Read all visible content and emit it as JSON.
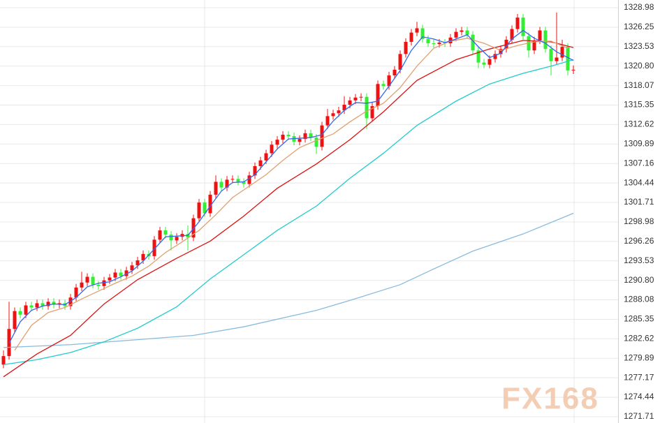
{
  "chart_data": {
    "type": "candlestick",
    "open": [
      1279.0,
      1280.2,
      1284.0,
      1286.5,
      1286.0,
      1287.3,
      1287.0,
      1287.6,
      1287.2,
      1287.8,
      1287.4,
      1287.6,
      1287.2,
      1288.4,
      1289.8,
      1290.5,
      1291.3,
      1290.2,
      1290.0,
      1290.8,
      1291.2,
      1291.9,
      1291.4,
      1292.2,
      1292.9,
      1293.6,
      1294.5,
      1294.2,
      1296.5,
      1297.8,
      1297.2,
      1296.4,
      1296.9,
      1297.3,
      1296.8,
      1299.5,
      1301.7,
      1300.2,
      1302.8,
      1304.6,
      1303.8,
      1304.9,
      1305.0,
      1304.6,
      1304.3,
      1305.5,
      1306.8,
      1307.6,
      1308.6,
      1309.8,
      1310.5,
      1311.2,
      1311.0,
      1310.2,
      1310.6,
      1311.4,
      1310.8,
      1309.5,
      1312.5,
      1313.8,
      1314.2,
      1314.6,
      1315.4,
      1316.0,
      1316.4,
      1316.5,
      1313.5,
      1315.2,
      1318.3,
      1318.0,
      1319.5,
      1320.3,
      1322.5,
      1324.2,
      1325.5,
      1326.1,
      1324.6,
      1324.0,
      1323.9,
      1324.1,
      1324.0,
      1324.8,
      1325.6,
      1325.8,
      1325.2,
      1323.0,
      1321.3,
      1321.0,
      1321.8,
      1322.5,
      1323.2,
      1324.5,
      1326.0,
      1327.6,
      1325.0,
      1323.0,
      1324.4,
      1325.8,
      1323.2,
      1321.5,
      1322.0,
      1323.5,
      1320.2
    ],
    "high": [
      1281.0,
      1287.8,
      1287.0,
      1287.0,
      1287.8,
      1287.8,
      1288.1,
      1288.1,
      1288.3,
      1288.3,
      1288.1,
      1288.1,
      1288.9,
      1290.3,
      1292.0,
      1291.8,
      1291.8,
      1290.7,
      1291.3,
      1291.7,
      1292.4,
      1292.4,
      1292.7,
      1293.4,
      1294.1,
      1295.0,
      1295.0,
      1297.0,
      1298.3,
      1298.3,
      1297.7,
      1297.4,
      1297.8,
      1298.5,
      1300.0,
      1302.2,
      1302.2,
      1303.3,
      1305.5,
      1305.1,
      1305.4,
      1305.5,
      1305.5,
      1305.1,
      1306.0,
      1307.3,
      1308.1,
      1309.1,
      1310.3,
      1311.0,
      1311.7,
      1311.7,
      1311.5,
      1311.1,
      1311.9,
      1311.9,
      1311.3,
      1313.0,
      1314.8,
      1314.7,
      1315.1,
      1316.6,
      1316.5,
      1316.9,
      1317.0,
      1317.0,
      1315.7,
      1318.8,
      1318.8,
      1320.0,
      1320.8,
      1323.0,
      1324.7,
      1326.0,
      1327.0,
      1326.6,
      1325.1,
      1324.5,
      1324.6,
      1324.6,
      1325.3,
      1326.1,
      1326.3,
      1326.3,
      1325.7,
      1323.5,
      1321.8,
      1322.3,
      1323.0,
      1323.7,
      1325.0,
      1326.5,
      1328.1,
      1328.1,
      1325.5,
      1324.9,
      1326.3,
      1326.3,
      1323.7,
      1328.3,
      1324.5,
      1324.0,
      1320.9
    ],
    "low": [
      1278.5,
      1279.7,
      1283.5,
      1285.5,
      1285.5,
      1286.5,
      1286.5,
      1286.7,
      1286.7,
      1286.9,
      1286.9,
      1286.7,
      1286.7,
      1287.9,
      1289.3,
      1290.0,
      1289.7,
      1289.5,
      1289.5,
      1290.3,
      1290.7,
      1290.9,
      1290.9,
      1291.7,
      1292.4,
      1293.1,
      1293.7,
      1293.7,
      1296.0,
      1296.7,
      1295.0,
      1295.9,
      1296.4,
      1295.0,
      1296.3,
      1299.0,
      1299.7,
      1299.7,
      1302.3,
      1303.3,
      1303.3,
      1304.4,
      1304.1,
      1303.8,
      1303.8,
      1305.0,
      1306.3,
      1307.1,
      1308.1,
      1309.3,
      1310.0,
      1310.5,
      1309.7,
      1309.7,
      1310.1,
      1310.3,
      1308.5,
      1309.0,
      1312.0,
      1313.3,
      1313.7,
      1314.1,
      1314.9,
      1315.5,
      1315.9,
      1312.0,
      1313.0,
      1314.7,
      1317.5,
      1317.5,
      1319.0,
      1319.8,
      1322.0,
      1323.7,
      1325.0,
      1324.1,
      1323.5,
      1323.4,
      1323.4,
      1323.5,
      1323.5,
      1324.3,
      1325.1,
      1324.7,
      1322.5,
      1320.5,
      1320.5,
      1320.5,
      1321.3,
      1322.0,
      1322.7,
      1324.0,
      1325.5,
      1324.5,
      1322.0,
      1322.5,
      1323.9,
      1322.7,
      1319.5,
      1321.0,
      1321.5,
      1319.5,
      1319.7
    ],
    "close": [
      1280.2,
      1284.0,
      1286.5,
      1286.0,
      1287.3,
      1287.0,
      1287.6,
      1287.2,
      1287.8,
      1287.4,
      1287.6,
      1287.2,
      1288.4,
      1289.8,
      1290.5,
      1291.3,
      1290.2,
      1290.0,
      1290.8,
      1291.2,
      1291.9,
      1291.4,
      1292.2,
      1292.9,
      1293.6,
      1294.5,
      1294.2,
      1296.5,
      1297.8,
      1297.2,
      1296.4,
      1296.9,
      1297.3,
      1296.8,
      1299.5,
      1301.7,
      1300.2,
      1302.8,
      1304.6,
      1303.8,
      1304.9,
      1305.0,
      1304.6,
      1304.3,
      1305.5,
      1306.8,
      1307.6,
      1308.6,
      1309.8,
      1310.5,
      1311.2,
      1311.0,
      1310.2,
      1310.6,
      1311.4,
      1310.8,
      1309.5,
      1312.5,
      1313.8,
      1314.2,
      1314.6,
      1315.4,
      1316.0,
      1316.4,
      1316.5,
      1313.5,
      1315.2,
      1318.3,
      1318.0,
      1319.5,
      1320.3,
      1322.5,
      1324.2,
      1325.5,
      1326.1,
      1324.6,
      1324.0,
      1323.9,
      1324.1,
      1324.0,
      1324.8,
      1325.6,
      1325.8,
      1325.2,
      1323.0,
      1321.3,
      1321.0,
      1321.8,
      1322.5,
      1323.2,
      1324.5,
      1326.0,
      1327.6,
      1325.0,
      1323.0,
      1324.4,
      1325.8,
      1323.2,
      1321.5,
      1322.0,
      1323.5,
      1320.2,
      1320.3
    ],
    "up_color": "#ee1111",
    "down_color": "#33ee33",
    "lines": [
      {
        "color": "#88bbdd",
        "x": [
          0,
          12,
          24,
          34,
          43,
          56,
          62,
          71,
          77,
          84,
          93,
          102
        ],
        "values": [
          1281.4,
          1281.8,
          1282.5,
          1283.1,
          1284.3,
          1286.6,
          1288.0,
          1290.2,
          1292.4,
          1294.9,
          1297.3,
          1300.2
        ]
      },
      {
        "color": "#22cccc",
        "x": [
          0,
          6,
          12,
          18,
          24,
          31,
          37,
          43,
          49,
          56,
          62,
          68,
          74,
          81,
          87,
          93,
          98,
          102
        ],
        "values": [
          1279.0,
          1279.7,
          1280.7,
          1282.2,
          1284.1,
          1287.1,
          1291.0,
          1294.4,
          1297.8,
          1301.2,
          1305.1,
          1308.6,
          1312.5,
          1315.9,
          1318.3,
          1319.8,
          1320.8,
          1321.7
        ]
      },
      {
        "color": "#dd1111",
        "x": [
          0,
          6,
          12,
          18,
          24,
          31,
          37,
          43,
          49,
          56,
          62,
          68,
          74,
          81,
          87,
          93,
          98,
          102
        ],
        "values": [
          1277.3,
          1280.5,
          1283.1,
          1287.5,
          1290.9,
          1293.9,
          1296.3,
          1299.8,
          1303.7,
          1307.1,
          1310.5,
          1314.4,
          1318.8,
          1321.7,
          1323.2,
          1324.4,
          1324.2,
          1323.4
        ]
      },
      {
        "color": "#e0a070",
        "x": [
          2,
          5,
          8,
          11,
          14,
          17,
          20,
          23,
          26,
          29,
          32,
          35,
          38,
          41,
          44,
          47,
          50,
          53,
          56,
          59,
          62,
          65,
          68,
          71,
          74,
          77,
          80,
          83,
          86,
          89,
          92,
          95,
          98,
          101
        ],
        "values": [
          1281.0,
          1284.5,
          1286.3,
          1287.0,
          1288.2,
          1289.3,
          1290.4,
          1291.4,
          1292.8,
          1294.7,
          1296.2,
          1297.8,
          1300.0,
          1302.4,
          1304.0,
          1305.6,
          1307.6,
          1309.4,
          1310.4,
          1311.3,
          1313.0,
          1314.5,
          1315.6,
          1317.8,
          1320.8,
          1323.3,
          1324.3,
          1324.7,
          1324.0,
          1323.0,
          1323.7,
          1324.2,
          1324.3,
          1323.3
        ]
      },
      {
        "color": "#3366ee",
        "x": [
          1,
          3,
          5,
          7,
          9,
          11,
          13,
          15,
          17,
          19,
          21,
          23,
          25,
          27,
          29,
          31,
          33,
          35,
          37,
          39,
          41,
          43,
          45,
          47,
          49,
          51,
          53,
          55,
          57,
          59,
          61,
          63,
          65,
          67,
          69,
          71,
          73,
          75,
          77,
          79,
          81,
          83,
          85,
          87,
          89,
          91,
          93,
          95,
          97,
          99,
          101,
          102
        ],
        "values": [
          1282.0,
          1285.0,
          1286.6,
          1287.2,
          1287.5,
          1287.4,
          1288.4,
          1289.9,
          1290.4,
          1290.6,
          1291.3,
          1292.1,
          1293.5,
          1295.2,
          1296.9,
          1297.0,
          1297.1,
          1299.0,
          1301.2,
          1303.3,
          1304.5,
          1304.6,
          1305.6,
          1307.4,
          1309.2,
          1310.6,
          1310.7,
          1310.8,
          1311.2,
          1313.1,
          1314.6,
          1315.7,
          1315.6,
          1315.9,
          1318.0,
          1320.2,
          1323.0,
          1324.9,
          1324.6,
          1324.1,
          1324.6,
          1325.2,
          1323.5,
          1322.0,
          1322.6,
          1324.6,
          1325.8,
          1324.7,
          1324.0,
          1322.8,
          1322.0,
          1321.6
        ]
      }
    ],
    "ylim": [
      1270.83,
      1330.06
    ],
    "yticks": [
      {
        "value": 1271.71,
        "label": "1271.71"
      },
      {
        "value": 1274.44,
        "label": "1274.44"
      },
      {
        "value": 1277.17,
        "label": "1277.17"
      },
      {
        "value": 1279.89,
        "label": "1279.89"
      },
      {
        "value": 1282.62,
        "label": "1282.62"
      },
      {
        "value": 1285.35,
        "label": "1285.35"
      },
      {
        "value": 1288.08,
        "label": "1288.08"
      },
      {
        "value": 1290.8,
        "label": "1290.80"
      },
      {
        "value": 1293.53,
        "label": "1293.53"
      },
      {
        "value": 1296.26,
        "label": "1296.26"
      },
      {
        "value": 1298.98,
        "label": "1298.98"
      },
      {
        "value": 1301.71,
        "label": "1301.71"
      },
      {
        "value": 1304.44,
        "label": "1304.44"
      },
      {
        "value": 1307.16,
        "label": "1307.16"
      },
      {
        "value": 1309.89,
        "label": "1309.89"
      },
      {
        "value": 1312.62,
        "label": "1312.62"
      },
      {
        "value": 1315.35,
        "label": "1315.35"
      },
      {
        "value": 1318.07,
        "label": "1318.07"
      },
      {
        "value": 1320.8,
        "label": "1320.80"
      },
      {
        "value": 1323.53,
        "label": "1323.53"
      },
      {
        "value": 1326.25,
        "label": "1326.25"
      },
      {
        "value": 1328.98,
        "label": "1328.98"
      }
    ],
    "grid": true,
    "watermark": "FX168"
  }
}
